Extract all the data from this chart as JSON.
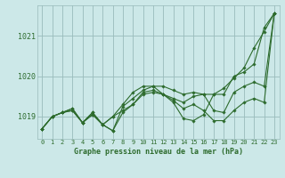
{
  "bg_color": "#cce8e8",
  "plot_bg_color": "#cce8e8",
  "grid_color": "#99bbbb",
  "line_color": "#2d6b2d",
  "title": "Graphe pression niveau de la mer (hPa)",
  "yticks": [
    1019,
    1020,
    1021
  ],
  "ylim": [
    1018.45,
    1021.75
  ],
  "xlim": [
    -0.5,
    23.5
  ],
  "series": [
    [
      1018.7,
      1019.0,
      1019.1,
      1019.2,
      1018.85,
      1019.05,
      1018.8,
      1018.65,
      1019.1,
      1019.3,
      1019.55,
      1019.6,
      1019.55,
      1019.45,
      1019.35,
      1019.5,
      1019.55,
      1019.15,
      1019.1,
      1019.6,
      1019.75,
      1019.85,
      1019.75,
      1021.55
    ],
    [
      1018.7,
      1019.0,
      1019.1,
      1019.2,
      1018.85,
      1019.05,
      1018.8,
      1018.65,
      1019.25,
      1019.45,
      1019.65,
      1019.75,
      1019.75,
      1019.65,
      1019.55,
      1019.6,
      1019.55,
      1019.55,
      1019.55,
      1020.0,
      1020.1,
      1020.3,
      1021.2,
      1021.55
    ],
    [
      1018.7,
      1019.0,
      1019.1,
      1019.15,
      1018.85,
      1019.1,
      1018.8,
      1019.0,
      1019.15,
      1019.3,
      1019.6,
      1019.65,
      1019.55,
      1019.4,
      1019.2,
      1019.3,
      1019.15,
      1018.9,
      1018.9,
      1019.15,
      1019.35,
      1019.45,
      1019.35,
      1021.55
    ],
    [
      1018.7,
      1019.0,
      1019.1,
      1019.15,
      1018.85,
      1019.1,
      1018.8,
      1019.0,
      1019.3,
      1019.6,
      1019.75,
      1019.75,
      1019.55,
      1019.35,
      1018.95,
      1018.9,
      1019.05,
      1019.55,
      1019.7,
      1019.95,
      1020.2,
      1020.7,
      1021.1,
      1021.55
    ]
  ]
}
